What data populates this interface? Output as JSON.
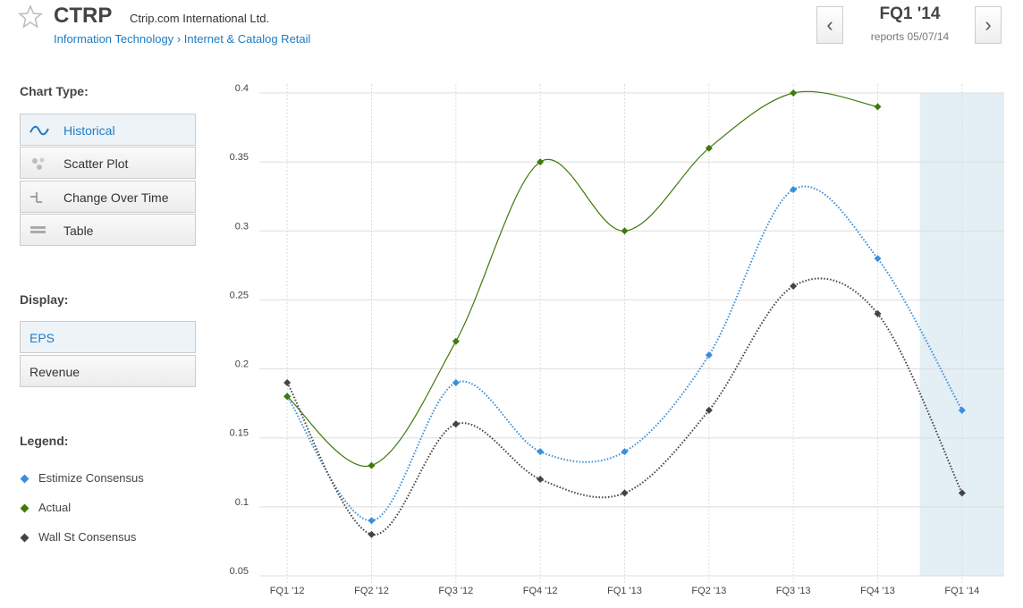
{
  "header": {
    "ticker": "CTRP",
    "company": "Ctrip.com International Ltd.",
    "sector": "Information Technology",
    "separator": "›",
    "industry": "Internet & Catalog Retail",
    "quarter": "FQ1 '14",
    "reports": "reports 05/07/14"
  },
  "sidebar": {
    "chart_type_label": "Chart Type:",
    "chart_types": [
      "Historical",
      "Scatter Plot",
      "Change Over Time",
      "Table"
    ],
    "display_label": "Display:",
    "displays": [
      "EPS",
      "Revenue"
    ],
    "legend_label": "Legend:"
  },
  "chart_data": {
    "type": "line",
    "categories": [
      "FQ1 '12",
      "FQ2 '12",
      "FQ3 '12",
      "FQ4 '12",
      "FQ1 '13",
      "FQ2 '13",
      "FQ3 '13",
      "FQ4 '13",
      "FQ1 '14"
    ],
    "series": [
      {
        "name": "Estimize Consensus",
        "color": "#3b8fd8",
        "style": "dotted",
        "values": [
          0.18,
          0.09,
          0.19,
          0.14,
          0.14,
          0.21,
          0.33,
          0.28,
          0.17
        ]
      },
      {
        "name": "Actual",
        "color": "#3e7a0c",
        "style": "solid",
        "values": [
          0.18,
          0.13,
          0.22,
          0.35,
          0.3,
          0.36,
          0.4,
          0.39,
          null
        ]
      },
      {
        "name": "Wall St Consensus",
        "color": "#444444",
        "style": "dotted",
        "values": [
          0.19,
          0.08,
          0.16,
          0.12,
          0.11,
          0.17,
          0.26,
          0.24,
          0.11
        ]
      }
    ],
    "ylim": [
      0.05,
      0.4
    ],
    "yticks": [
      0.05,
      0.1,
      0.15,
      0.2,
      0.25,
      0.3,
      0.35,
      0.4
    ],
    "grid": true
  }
}
